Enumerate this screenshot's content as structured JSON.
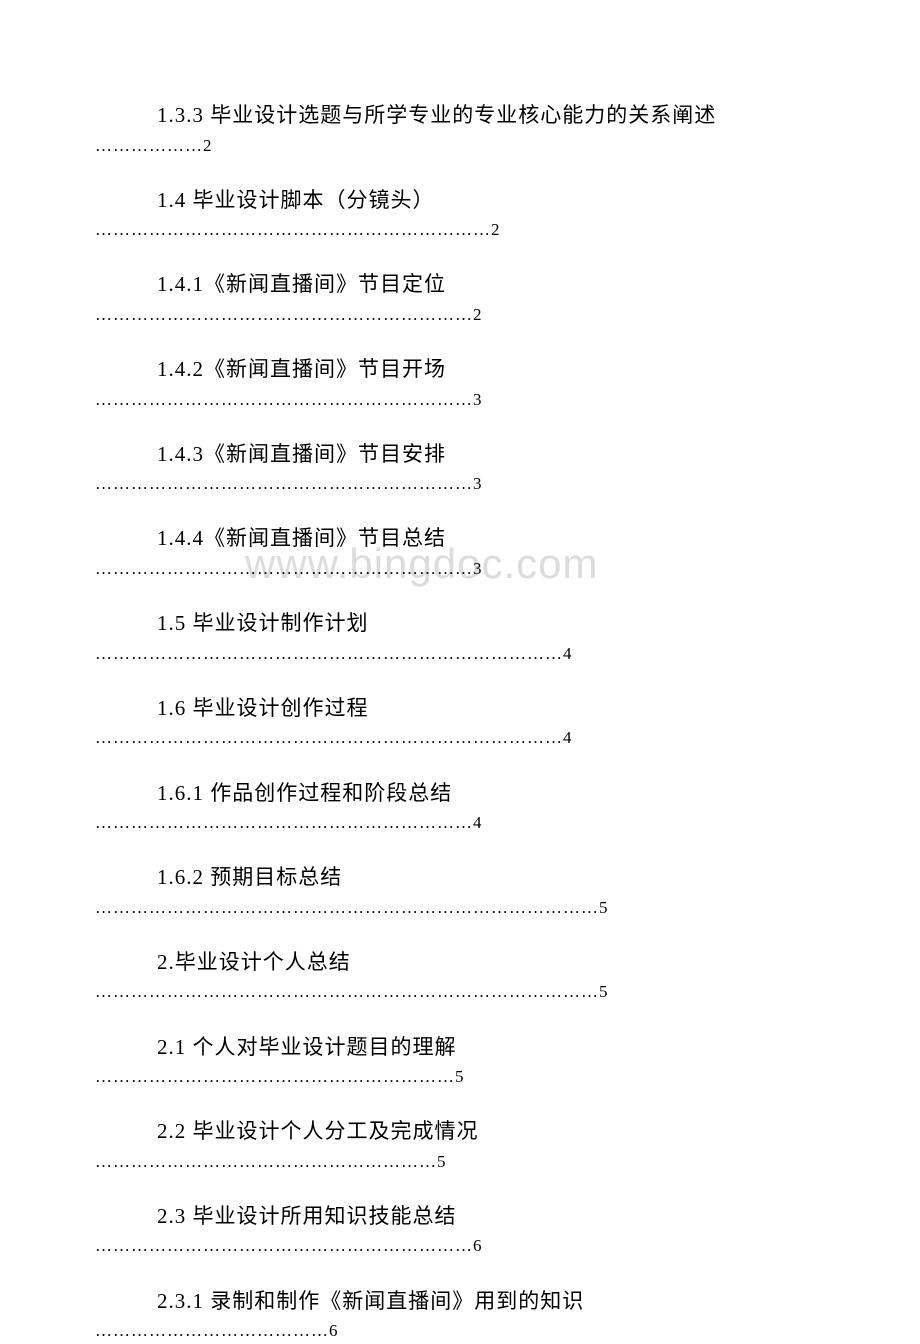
{
  "watermark": "www.bingdoc.com",
  "toc": [
    {
      "title": "1.3.3 毕业设计选题与所学专业的专业核心能力的关系阐述",
      "dots": "………………2"
    },
    {
      "title": "1.4 毕业设计脚本（分镜头）",
      "dots": "…………………………………………………………2"
    },
    {
      "title": "1.4.1《新闻直播间》节目定位",
      "dots": "………………………………………………………2"
    },
    {
      "title": "1.4.2《新闻直播间》节目开场",
      "dots": "………………………………………………………3"
    },
    {
      "title": "1.4.3《新闻直播间》节目安排",
      "dots": "………………………………………………………3"
    },
    {
      "title": "1.4.4《新闻直播间》节目总结",
      "dots": "………………………………………………………3"
    },
    {
      "title": "1.5 毕业设计制作计划",
      "dots": "……………………………………………………………………4"
    },
    {
      "title": "1.6 毕业设计创作过程",
      "dots": "……………………………………………………………………4"
    },
    {
      "title": "1.6.1 作品创作过程和阶段总结",
      "dots": "………………………………………………………4"
    },
    {
      "title": "1.6.2 预期目标总结",
      "dots": "…………………………………………………………………………5"
    },
    {
      "title": "2.毕业设计个人总结",
      "dots": "…………………………………………………………………………5"
    },
    {
      "title": "2.1 个人对毕业设计题目的理解",
      "dots": "……………………………………………………5"
    },
    {
      "title": "2.2 毕业设计个人分工及完成情况",
      "dots": "…………………………………………………5"
    },
    {
      "title": "2.3 毕业设计所用知识技能总结",
      "dots": "………………………………………………………6"
    },
    {
      "title": "2.3.1 录制和制作《新闻直播间》用到的知识",
      "dots": "…………………………………6"
    }
  ]
}
